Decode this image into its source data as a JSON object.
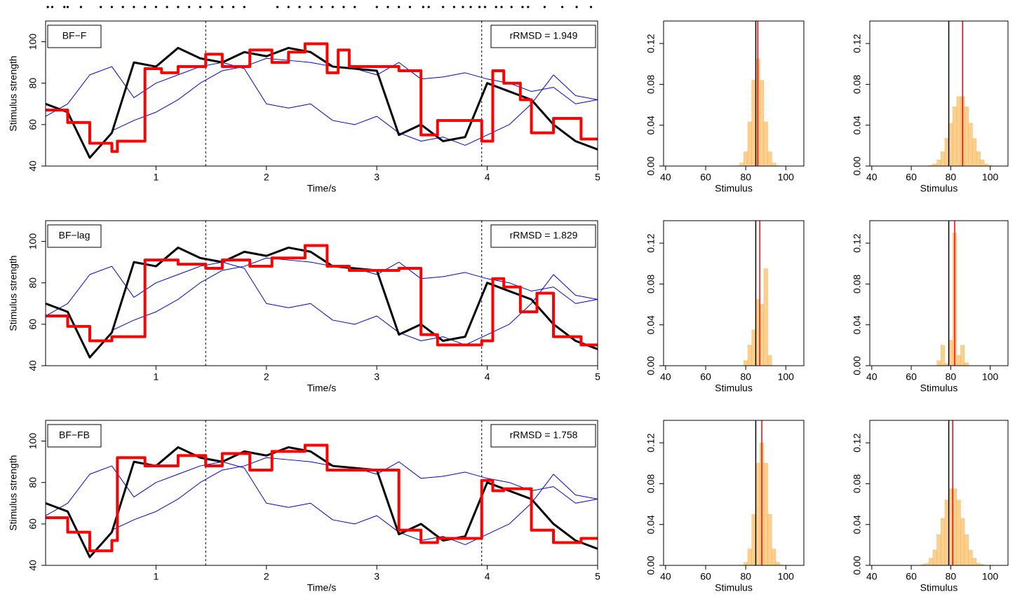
{
  "chart_data": [
    {
      "type": "line",
      "label": "BF−F",
      "annotation": "rRMSD = 1.949",
      "xlabel": "Time/s",
      "ylabel": "Stimulus strength",
      "xlim": [
        0,
        5
      ],
      "ylim": [
        40,
        110
      ],
      "xticks": [
        1,
        2,
        3,
        4,
        5
      ],
      "yticks": [
        40,
        60,
        80,
        100
      ],
      "vlines": [
        1.45,
        3.95
      ],
      "events": [
        0.02,
        0.06,
        0.17,
        0.2,
        0.32,
        0.5,
        0.6,
        0.7,
        0.8,
        0.9,
        1.0,
        1.1,
        1.2,
        1.3,
        1.4,
        1.5,
        1.6,
        1.7,
        1.8,
        2.1,
        2.2,
        2.3,
        2.4,
        2.5,
        2.6,
        2.7,
        2.8,
        3.0,
        3.1,
        3.2,
        3.3,
        3.42,
        3.47,
        3.6,
        3.7,
        3.78,
        3.85,
        3.93,
        3.98,
        4.08,
        4.13,
        4.22,
        4.32,
        4.37,
        4.52,
        4.68,
        4.81,
        4.94
      ],
      "x": [
        0,
        0.2,
        0.4,
        0.6,
        0.8,
        1.0,
        1.2,
        1.4,
        1.6,
        1.8,
        2.0,
        2.2,
        2.4,
        2.6,
        2.8,
        3.0,
        3.2,
        3.4,
        3.6,
        3.8,
        4.0,
        4.2,
        4.4,
        4.6,
        4.8,
        5.0
      ],
      "series": [
        {
          "color": "#0000dd",
          "width": 1,
          "values": [
            64,
            70,
            84,
            88,
            73,
            80,
            84,
            88,
            90,
            87,
            70,
            68,
            70,
            62,
            60,
            64,
            56,
            52,
            54,
            50,
            55,
            60,
            70,
            84,
            74,
            72
          ]
        },
        {
          "color": "#0000dd",
          "width": 1,
          "values": [
            null,
            null,
            null,
            57,
            62,
            66,
            72,
            80,
            86,
            88,
            92,
            91,
            90,
            88,
            87,
            84,
            90,
            82,
            83,
            85,
            82,
            80,
            76,
            78,
            70,
            72
          ]
        },
        {
          "color": "#000000",
          "width": 3,
          "values": [
            70,
            66,
            44,
            56,
            90,
            88,
            97,
            92,
            90,
            95,
            93,
            97,
            95,
            88,
            87,
            86,
            55,
            60,
            52,
            54,
            80,
            76,
            72,
            60,
            52,
            48
          ]
        },
        {
          "color": "#ff0000",
          "width": 4,
          "step": true,
          "x": [
            0,
            0.2,
            0.4,
            0.6,
            0.65,
            0.9,
            1.05,
            1.2,
            1.45,
            1.6,
            1.85,
            2.05,
            2.2,
            2.35,
            2.55,
            2.65,
            2.75,
            3.2,
            3.4,
            3.55,
            3.95,
            4.05,
            4.15,
            4.3,
            4.4,
            4.6,
            4.85
          ],
          "values": [
            67,
            61,
            51,
            47,
            52,
            87,
            85,
            88,
            94,
            88,
            96,
            90,
            95,
            99,
            85,
            96,
            88,
            86,
            55,
            62,
            52,
            86,
            80,
            72,
            56,
            63,
            53
          ]
        }
      ]
    },
    {
      "type": "histogram",
      "xlabel": "Stimulus",
      "xlim": [
        39,
        109
      ],
      "ylim": [
        0,
        0.142
      ],
      "xticks": [
        40,
        60,
        80,
        100
      ],
      "yticks": [
        {
          "value": 0,
          "label": "0.00"
        },
        {
          "value": 0.04,
          "label": "0.04"
        },
        {
          "value": 0.08,
          "label": "0.08"
        },
        {
          "value": 0.12,
          "label": "0.12"
        }
      ],
      "color": "#fbd08c",
      "bins": [
        75,
        77,
        79,
        81,
        83,
        85,
        87,
        89,
        91,
        93,
        95,
        97
      ],
      "values": [
        0.0004,
        0.003,
        0.014,
        0.043,
        0.084,
        0.105,
        0.084,
        0.043,
        0.014,
        0.003,
        0.0004
      ],
      "vlines": [
        {
          "value": 85,
          "color": "#000000"
        },
        {
          "value": 86,
          "color": "#ff0000"
        }
      ]
    },
    {
      "type": "histogram",
      "xlabel": "Stimulus",
      "xlim": [
        39,
        109
      ],
      "ylim": [
        0,
        0.142
      ],
      "xticks": [
        40,
        60,
        80,
        100
      ],
      "yticks": [
        {
          "value": 0,
          "label": "0.00"
        },
        {
          "value": 0.04,
          "label": "0.04"
        },
        {
          "value": 0.08,
          "label": "0.08"
        },
        {
          "value": 0.12,
          "label": "0.12"
        }
      ],
      "color": "#fbd08c",
      "bins": [
        69,
        71,
        73,
        75,
        77,
        79,
        81,
        83,
        85,
        87,
        89,
        91,
        93,
        95,
        97,
        99,
        101
      ],
      "values": [
        0.0008,
        0.002,
        0.006,
        0.014,
        0.027,
        0.042,
        0.058,
        0.068,
        0.068,
        0.058,
        0.042,
        0.027,
        0.014,
        0.006,
        0.002,
        0.0008
      ],
      "vlines": [
        {
          "value": 79,
          "color": "#000000"
        },
        {
          "value": 86,
          "color": "#ff0000"
        }
      ]
    },
    {
      "type": "line",
      "label": "BF−lag",
      "annotation": "rRMSD = 1.829",
      "xlabel": "Time/s",
      "ylabel": "Stimulus strength",
      "xlim": [
        0,
        5
      ],
      "ylim": [
        40,
        110
      ],
      "xticks": [
        1,
        2,
        3,
        4,
        5
      ],
      "yticks": [
        40,
        60,
        80,
        100
      ],
      "vlines": [
        1.45,
        3.95
      ],
      "x": [
        0,
        0.2,
        0.4,
        0.6,
        0.8,
        1.0,
        1.2,
        1.4,
        1.6,
        1.8,
        2.0,
        2.2,
        2.4,
        2.6,
        2.8,
        3.0,
        3.2,
        3.4,
        3.6,
        3.8,
        4.0,
        4.2,
        4.4,
        4.6,
        4.8,
        5.0
      ],
      "series": [
        {
          "color": "#0000dd",
          "width": 1,
          "values": [
            64,
            70,
            84,
            88,
            73,
            80,
            84,
            88,
            90,
            87,
            70,
            68,
            70,
            62,
            60,
            64,
            56,
            52,
            54,
            50,
            55,
            60,
            70,
            84,
            74,
            72
          ]
        },
        {
          "color": "#0000dd",
          "width": 1,
          "values": [
            null,
            null,
            null,
            57,
            62,
            66,
            72,
            80,
            86,
            88,
            92,
            91,
            90,
            88,
            87,
            84,
            90,
            82,
            83,
            85,
            82,
            80,
            76,
            78,
            70,
            72
          ]
        },
        {
          "color": "#000000",
          "width": 3,
          "values": [
            70,
            66,
            44,
            56,
            90,
            88,
            97,
            92,
            90,
            95,
            93,
            97,
            95,
            88,
            87,
            86,
            55,
            60,
            52,
            54,
            80,
            76,
            72,
            60,
            52,
            48
          ]
        },
        {
          "color": "#ff0000",
          "width": 4,
          "step": true,
          "x": [
            0,
            0.2,
            0.4,
            0.6,
            0.9,
            1.2,
            1.45,
            1.6,
            1.85,
            2.05,
            2.35,
            2.55,
            2.75,
            3.2,
            3.4,
            3.55,
            3.95,
            4.05,
            4.15,
            4.3,
            4.45,
            4.6,
            4.85
          ],
          "values": [
            64,
            59,
            52,
            54,
            91,
            89,
            87,
            91,
            88,
            92,
            98,
            88,
            86,
            87,
            55,
            50,
            52,
            82,
            78,
            66,
            75,
            54,
            50
          ]
        }
      ]
    },
    {
      "type": "histogram",
      "xlabel": "Stimulus",
      "xlim": [
        39,
        109
      ],
      "ylim": [
        0,
        0.142
      ],
      "xticks": [
        40,
        60,
        80,
        100
      ],
      "yticks": [
        {
          "value": 0,
          "label": "0.00"
        },
        {
          "value": 0.04,
          "label": "0.04"
        },
        {
          "value": 0.08,
          "label": "0.08"
        },
        {
          "value": 0.12,
          "label": "0.12"
        }
      ],
      "color": "#fbd08c",
      "bins": [
        79,
        81,
        83,
        85,
        87,
        89,
        91,
        93
      ],
      "values": [
        0.005,
        0.02,
        0.035,
        0.065,
        0.06,
        0.095,
        0.01
      ],
      "vlines": [
        {
          "value": 85,
          "color": "#000000"
        },
        {
          "value": 87,
          "color": "#ff0000"
        }
      ]
    },
    {
      "type": "histogram",
      "xlabel": "Stimulus",
      "xlim": [
        39,
        109
      ],
      "ylim": [
        0,
        0.142
      ],
      "xticks": [
        40,
        60,
        80,
        100
      ],
      "yticks": [
        {
          "value": 0,
          "label": "0.00"
        },
        {
          "value": 0.04,
          "label": "0.04"
        },
        {
          "value": 0.08,
          "label": "0.08"
        },
        {
          "value": 0.12,
          "label": "0.12"
        }
      ],
      "color": "#fbd08c",
      "bins": [
        73,
        75,
        77,
        79,
        81,
        83,
        85,
        87,
        89
      ],
      "values": [
        0.005,
        0.02,
        0.002,
        0.025,
        0.13,
        0.01,
        0.02,
        0.003
      ],
      "vlines": [
        {
          "value": 79,
          "color": "#000000"
        },
        {
          "value": 82,
          "color": "#ff0000"
        }
      ]
    },
    {
      "type": "line",
      "label": "BF−FB",
      "annotation": "rRMSD = 1.758",
      "xlabel": "Time/s",
      "ylabel": "Stimulus strength",
      "xlim": [
        0,
        5
      ],
      "ylim": [
        40,
        110
      ],
      "xticks": [
        1,
        2,
        3,
        4,
        5
      ],
      "yticks": [
        40,
        60,
        80,
        100
      ],
      "vlines": [
        1.45,
        3.95
      ],
      "x": [
        0,
        0.2,
        0.4,
        0.6,
        0.8,
        1.0,
        1.2,
        1.4,
        1.6,
        1.8,
        2.0,
        2.2,
        2.4,
        2.6,
        2.8,
        3.0,
        3.2,
        3.4,
        3.6,
        3.8,
        4.0,
        4.2,
        4.4,
        4.6,
        4.8,
        5.0
      ],
      "series": [
        {
          "color": "#0000dd",
          "width": 1,
          "values": [
            64,
            70,
            84,
            88,
            73,
            80,
            84,
            88,
            90,
            87,
            70,
            68,
            70,
            62,
            60,
            64,
            56,
            52,
            54,
            50,
            55,
            60,
            70,
            84,
            74,
            72
          ]
        },
        {
          "color": "#0000dd",
          "width": 1,
          "values": [
            null,
            null,
            null,
            57,
            62,
            66,
            72,
            80,
            86,
            88,
            92,
            91,
            90,
            88,
            87,
            84,
            90,
            82,
            83,
            85,
            82,
            80,
            76,
            78,
            70,
            72
          ]
        },
        {
          "color": "#000000",
          "width": 3,
          "values": [
            70,
            66,
            44,
            56,
            90,
            88,
            97,
            92,
            90,
            95,
            93,
            97,
            95,
            88,
            87,
            86,
            55,
            60,
            52,
            54,
            80,
            76,
            72,
            60,
            52,
            48
          ]
        },
        {
          "color": "#ff0000",
          "width": 4,
          "step": true,
          "x": [
            0,
            0.2,
            0.4,
            0.6,
            0.65,
            0.9,
            1.2,
            1.45,
            1.6,
            1.85,
            2.05,
            2.35,
            2.55,
            2.75,
            3.2,
            3.4,
            3.55,
            3.95,
            4.05,
            4.15,
            4.4,
            4.6,
            4.85
          ],
          "values": [
            63,
            56,
            47,
            52,
            92,
            88,
            93,
            88,
            94,
            86,
            95,
            98,
            86,
            86,
            57,
            51,
            53,
            81,
            76,
            77,
            57,
            51,
            53
          ]
        }
      ]
    },
    {
      "type": "histogram",
      "xlabel": "Stimulus",
      "xlim": [
        39,
        109
      ],
      "ylim": [
        0,
        0.142
      ],
      "xticks": [
        40,
        60,
        80,
        100
      ],
      "yticks": [
        {
          "value": 0,
          "label": "0.00"
        },
        {
          "value": 0.04,
          "label": "0.04"
        },
        {
          "value": 0.08,
          "label": "0.08"
        },
        {
          "value": 0.12,
          "label": "0.12"
        }
      ],
      "color": "#fbd08c",
      "bins": [
        77,
        79,
        81,
        83,
        85,
        87,
        89,
        91,
        93,
        95,
        97,
        99
      ],
      "values": [
        0.0004,
        0.003,
        0.016,
        0.05,
        0.1,
        0.12,
        0.1,
        0.05,
        0.016,
        0.003,
        0.0004
      ],
      "vlines": [
        {
          "value": 85,
          "color": "#000000"
        },
        {
          "value": 88,
          "color": "#ff0000"
        }
      ]
    },
    {
      "type": "histogram",
      "xlabel": "Stimulus",
      "xlim": [
        39,
        109
      ],
      "ylim": [
        0,
        0.142
      ],
      "xticks": [
        40,
        60,
        80,
        100
      ],
      "yticks": [
        {
          "value": 0,
          "label": "0.00"
        },
        {
          "value": 0.04,
          "label": "0.04"
        },
        {
          "value": 0.08,
          "label": "0.08"
        },
        {
          "value": 0.12,
          "label": "0.12"
        }
      ],
      "color": "#fbd08c",
      "bins": [
        65,
        67,
        69,
        71,
        73,
        75,
        77,
        79,
        81,
        83,
        85,
        87,
        89,
        91,
        93,
        95,
        97
      ],
      "values": [
        0.0009,
        0.002,
        0.007,
        0.015,
        0.03,
        0.046,
        0.064,
        0.075,
        0.075,
        0.064,
        0.046,
        0.03,
        0.015,
        0.007,
        0.002,
        0.0009
      ],
      "vlines": [
        {
          "value": 79,
          "color": "#000000"
        },
        {
          "value": 81,
          "color": "#ff0000"
        }
      ]
    }
  ]
}
